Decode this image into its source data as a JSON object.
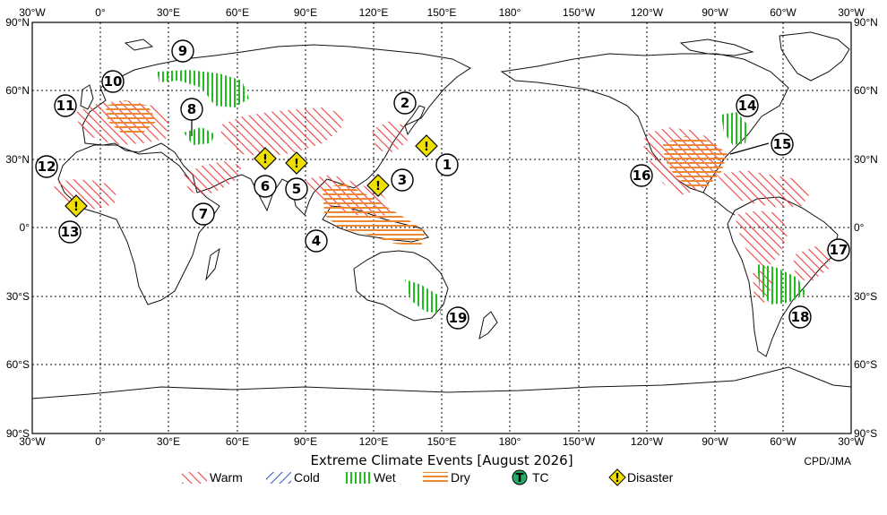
{
  "title": "Extreme Climate Events [August 2026]",
  "credit": "CPD/JMA",
  "axes": {
    "lon_labels": [
      "30°W",
      "0°",
      "30°E",
      "60°E",
      "90°E",
      "120°E",
      "150°E",
      "180°",
      "150°W",
      "120°W",
      "90°W",
      "60°W",
      "30°W"
    ],
    "lat_labels": [
      "90°N",
      "60°N",
      "30°N",
      "0°",
      "30°S",
      "60°S",
      "90°S"
    ]
  },
  "legend": [
    {
      "key": "warm",
      "label": "Warm",
      "color": "#ee4040"
    },
    {
      "key": "cold",
      "label": "Cold",
      "color": "#3050d0"
    },
    {
      "key": "wet",
      "label": "Wet",
      "color": "#22bb22"
    },
    {
      "key": "dry",
      "label": "Dry",
      "color": "#ee8833"
    },
    {
      "key": "tc",
      "label": "TC",
      "color": "#22aa66",
      "glyph": "T"
    },
    {
      "key": "disaster",
      "label": "Disaster",
      "color": "#f0e000",
      "glyph": "!"
    }
  ],
  "events": {
    "numbers": [
      "1",
      "2",
      "3",
      "4",
      "5",
      "6",
      "7",
      "8",
      "9",
      "10",
      "11",
      "12",
      "13",
      "14",
      "15",
      "16",
      "17",
      "18",
      "19"
    ],
    "disaster_glyph": "!"
  }
}
